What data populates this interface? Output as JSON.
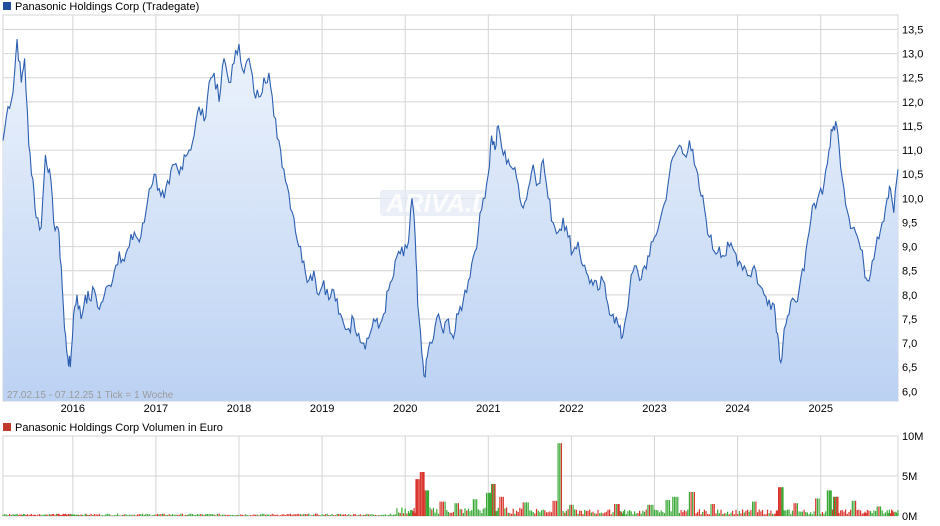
{
  "colors": {
    "price_line": "#2c5fb0",
    "area_top": "#edf3fc",
    "area_bottom": "#bcd2f3",
    "grid": "#d4d4d4",
    "price_legend": "#1f4e9c",
    "volume_legend": "#c0392b",
    "volume_up": "#39a935",
    "volume_down": "#d9342c"
  },
  "watermark": "ARIVA.DE",
  "chart_data": [
    {
      "type": "line",
      "legend": "Panasonic Holdings Corp (Tradegate)",
      "info": "27.02.15 - 07.12.25    1 Tick = 1 Woche",
      "grid": true,
      "legend_position": "top-left",
      "ylim": [
        5.8,
        13.8
      ],
      "y_ticks": [
        6.0,
        6.5,
        7.0,
        7.5,
        8.0,
        8.5,
        9.0,
        9.5,
        10.0,
        10.5,
        11.0,
        11.5,
        12.0,
        12.5,
        13.0,
        13.5
      ],
      "y_tick_labels": [
        "6,0",
        "6,5",
        "7,0",
        "7,5",
        "8,0",
        "8,5",
        "9,0",
        "9,5",
        "10,0",
        "10,5",
        "11,0",
        "11,5",
        "12,0",
        "12,5",
        "13,0",
        "13,5"
      ],
      "x_range": [
        2015.16,
        2025.93
      ],
      "x_ticks": [
        "2016",
        "2017",
        "2018",
        "2019",
        "2020",
        "2021",
        "2022",
        "2023",
        "2024",
        "2025"
      ],
      "series": [
        {
          "points": [
            [
              2015.16,
              11.2
            ],
            [
              2015.22,
              11.9
            ],
            [
              2015.28,
              12.2
            ],
            [
              2015.33,
              13.3
            ],
            [
              2015.38,
              12.4
            ],
            [
              2015.42,
              12.9
            ],
            [
              2015.47,
              11.1
            ],
            [
              2015.52,
              10.4
            ],
            [
              2015.56,
              9.6
            ],
            [
              2015.62,
              9.4
            ],
            [
              2015.67,
              10.9
            ],
            [
              2015.72,
              10.6
            ],
            [
              2015.77,
              9.5
            ],
            [
              2015.82,
              9.4
            ],
            [
              2015.86,
              8.6
            ],
            [
              2015.9,
              7.3
            ],
            [
              2015.94,
              6.7
            ],
            [
              2015.97,
              6.5
            ],
            [
              2016.01,
              7.6
            ],
            [
              2016.05,
              8.0
            ],
            [
              2016.1,
              7.5
            ],
            [
              2016.15,
              8.0
            ],
            [
              2016.2,
              7.9
            ],
            [
              2016.26,
              8.1
            ],
            [
              2016.32,
              7.7
            ],
            [
              2016.38,
              8.0
            ],
            [
              2016.44,
              8.2
            ],
            [
              2016.5,
              8.5
            ],
            [
              2016.56,
              8.9
            ],
            [
              2016.62,
              8.7
            ],
            [
              2016.68,
              9.0
            ],
            [
              2016.74,
              9.3
            ],
            [
              2016.8,
              9.1
            ],
            [
              2016.86,
              9.5
            ],
            [
              2016.92,
              10.2
            ],
            [
              2016.98,
              10.5
            ],
            [
              2017.04,
              10.2
            ],
            [
              2017.1,
              10.0
            ],
            [
              2017.16,
              10.3
            ],
            [
              2017.22,
              10.7
            ],
            [
              2017.28,
              10.5
            ],
            [
              2017.34,
              10.9
            ],
            [
              2017.4,
              11.0
            ],
            [
              2017.46,
              11.3
            ],
            [
              2017.52,
              11.9
            ],
            [
              2017.58,
              11.6
            ],
            [
              2017.64,
              12.4
            ],
            [
              2017.7,
              12.6
            ],
            [
              2017.76,
              12.0
            ],
            [
              2017.82,
              12.9
            ],
            [
              2017.88,
              12.4
            ],
            [
              2017.94,
              12.8
            ],
            [
              2018.0,
              13.2
            ],
            [
              2018.06,
              12.6
            ],
            [
              2018.12,
              12.9
            ],
            [
              2018.18,
              12.2
            ],
            [
              2018.24,
              12.1
            ],
            [
              2018.3,
              12.5
            ],
            [
              2018.36,
              12.6
            ],
            [
              2018.42,
              11.7
            ],
            [
              2018.48,
              11.2
            ],
            [
              2018.54,
              10.6
            ],
            [
              2018.6,
              10.1
            ],
            [
              2018.66,
              9.6
            ],
            [
              2018.72,
              9.0
            ],
            [
              2018.78,
              8.7
            ],
            [
              2018.84,
              8.3
            ],
            [
              2018.9,
              8.5
            ],
            [
              2018.96,
              8.0
            ],
            [
              2019.02,
              8.3
            ],
            [
              2019.08,
              7.9
            ],
            [
              2019.14,
              8.1
            ],
            [
              2019.2,
              7.6
            ],
            [
              2019.26,
              7.4
            ],
            [
              2019.32,
              7.3
            ],
            [
              2019.38,
              7.5
            ],
            [
              2019.44,
              7.2
            ],
            [
              2019.5,
              7.0
            ],
            [
              2019.56,
              7.1
            ],
            [
              2019.62,
              7.5
            ],
            [
              2019.68,
              7.3
            ],
            [
              2019.74,
              7.6
            ],
            [
              2019.8,
              8.1
            ],
            [
              2019.86,
              8.4
            ],
            [
              2019.92,
              8.9
            ],
            [
              2019.98,
              8.8
            ],
            [
              2020.04,
              9.1
            ],
            [
              2020.08,
              10.0
            ],
            [
              2020.12,
              9.2
            ],
            [
              2020.15,
              7.8
            ],
            [
              2020.2,
              6.8
            ],
            [
              2020.24,
              6.3
            ],
            [
              2020.28,
              6.9
            ],
            [
              2020.34,
              7.1
            ],
            [
              2020.4,
              7.6
            ],
            [
              2020.46,
              7.2
            ],
            [
              2020.52,
              7.5
            ],
            [
              2020.58,
              7.1
            ],
            [
              2020.64,
              7.6
            ],
            [
              2020.7,
              7.9
            ],
            [
              2020.76,
              8.3
            ],
            [
              2020.82,
              8.8
            ],
            [
              2020.88,
              9.3
            ],
            [
              2020.94,
              10.0
            ],
            [
              2021.0,
              10.5
            ],
            [
              2021.04,
              11.3
            ],
            [
              2021.08,
              11.0
            ],
            [
              2021.12,
              11.5
            ],
            [
              2021.18,
              10.9
            ],
            [
              2021.24,
              10.8
            ],
            [
              2021.3,
              10.6
            ],
            [
              2021.36,
              10.3
            ],
            [
              2021.42,
              9.8
            ],
            [
              2021.48,
              10.2
            ],
            [
              2021.54,
              10.7
            ],
            [
              2021.6,
              10.3
            ],
            [
              2021.66,
              10.8
            ],
            [
              2021.72,
              10.0
            ],
            [
              2021.78,
              9.5
            ],
            [
              2021.84,
              9.3
            ],
            [
              2021.9,
              9.6
            ],
            [
              2021.96,
              9.2
            ],
            [
              2022.02,
              8.9
            ],
            [
              2022.08,
              9.1
            ],
            [
              2022.14,
              8.6
            ],
            [
              2022.2,
              8.4
            ],
            [
              2022.26,
              8.2
            ],
            [
              2022.32,
              8.1
            ],
            [
              2022.38,
              8.3
            ],
            [
              2022.44,
              7.8
            ],
            [
              2022.5,
              7.6
            ],
            [
              2022.56,
              7.4
            ],
            [
              2022.6,
              7.1
            ],
            [
              2022.64,
              7.4
            ],
            [
              2022.7,
              8.1
            ],
            [
              2022.76,
              8.6
            ],
            [
              2022.82,
              8.3
            ],
            [
              2022.88,
              8.6
            ],
            [
              2022.94,
              8.8
            ],
            [
              2023.0,
              9.2
            ],
            [
              2023.06,
              9.5
            ],
            [
              2023.12,
              9.9
            ],
            [
              2023.18,
              10.5
            ],
            [
              2023.24,
              10.9
            ],
            [
              2023.3,
              11.1
            ],
            [
              2023.36,
              10.9
            ],
            [
              2023.42,
              11.2
            ],
            [
              2023.48,
              10.7
            ],
            [
              2023.54,
              10.2
            ],
            [
              2023.6,
              9.8
            ],
            [
              2023.66,
              9.2
            ],
            [
              2023.72,
              8.9
            ],
            [
              2023.78,
              9.0
            ],
            [
              2023.84,
              8.8
            ],
            [
              2023.9,
              9.0
            ],
            [
              2023.96,
              8.9
            ],
            [
              2024.02,
              8.7
            ],
            [
              2024.08,
              8.6
            ],
            [
              2024.14,
              8.4
            ],
            [
              2024.2,
              8.6
            ],
            [
              2024.26,
              8.2
            ],
            [
              2024.32,
              8.0
            ],
            [
              2024.38,
              7.9
            ],
            [
              2024.44,
              7.8
            ],
            [
              2024.48,
              7.2
            ],
            [
              2024.52,
              6.6
            ],
            [
              2024.56,
              7.3
            ],
            [
              2024.62,
              7.6
            ],
            [
              2024.68,
              7.9
            ],
            [
              2024.74,
              8.1
            ],
            [
              2024.8,
              8.5
            ],
            [
              2024.86,
              9.3
            ],
            [
              2024.92,
              9.9
            ],
            [
              2024.98,
              10.1
            ],
            [
              2025.04,
              10.3
            ],
            [
              2025.1,
              11.0
            ],
            [
              2025.14,
              11.4
            ],
            [
              2025.18,
              11.6
            ],
            [
              2025.22,
              11.1
            ],
            [
              2025.28,
              10.2
            ],
            [
              2025.34,
              9.6
            ],
            [
              2025.4,
              9.4
            ],
            [
              2025.46,
              9.1
            ],
            [
              2025.52,
              8.6
            ],
            [
              2025.56,
              8.3
            ],
            [
              2025.62,
              8.7
            ],
            [
              2025.68,
              9.2
            ],
            [
              2025.74,
              9.5
            ],
            [
              2025.8,
              10.0
            ],
            [
              2025.84,
              10.2
            ],
            [
              2025.88,
              9.7
            ],
            [
              2025.93,
              10.6
            ]
          ]
        }
      ]
    },
    {
      "type": "bar",
      "legend": "Panasonic Holdings Corp Volumen in Euro",
      "grid": true,
      "legend_position": "top-left",
      "ylim": [
        0,
        10
      ],
      "y_unit": "M",
      "y_ticks": [
        0,
        5,
        10
      ],
      "y_tick_labels": [
        "0M",
        "5M",
        "10M"
      ],
      "x_ticks": [
        "2016",
        "2017",
        "2018",
        "2019",
        "2020",
        "2021",
        "2022",
        "2023",
        "2024",
        "2025"
      ],
      "x_range": [
        2015.16,
        2025.93
      ],
      "spikes": [
        [
          2020.15,
          4.6
        ],
        [
          2020.2,
          5.5
        ],
        [
          2020.25,
          3.2
        ],
        [
          2020.45,
          1.8
        ],
        [
          2020.62,
          1.6
        ],
        [
          2020.85,
          2.1
        ],
        [
          2021.0,
          2.9
        ],
        [
          2021.06,
          4.0
        ],
        [
          2021.16,
          2.4
        ],
        [
          2021.45,
          1.7
        ],
        [
          2021.8,
          1.9
        ],
        [
          2021.86,
          9.1
        ],
        [
          2022.0,
          1.4
        ],
        [
          2022.55,
          1.5
        ],
        [
          2022.95,
          1.4
        ],
        [
          2023.15,
          2.0
        ],
        [
          2023.25,
          2.4
        ],
        [
          2023.45,
          3.0
        ],
        [
          2023.7,
          1.5
        ],
        [
          2024.2,
          1.8
        ],
        [
          2024.52,
          3.6
        ],
        [
          2024.7,
          1.6
        ],
        [
          2024.96,
          2.2
        ],
        [
          2025.1,
          3.2
        ],
        [
          2025.18,
          2.4
        ],
        [
          2025.4,
          1.9
        ],
        [
          2025.7,
          1.2
        ]
      ]
    }
  ]
}
